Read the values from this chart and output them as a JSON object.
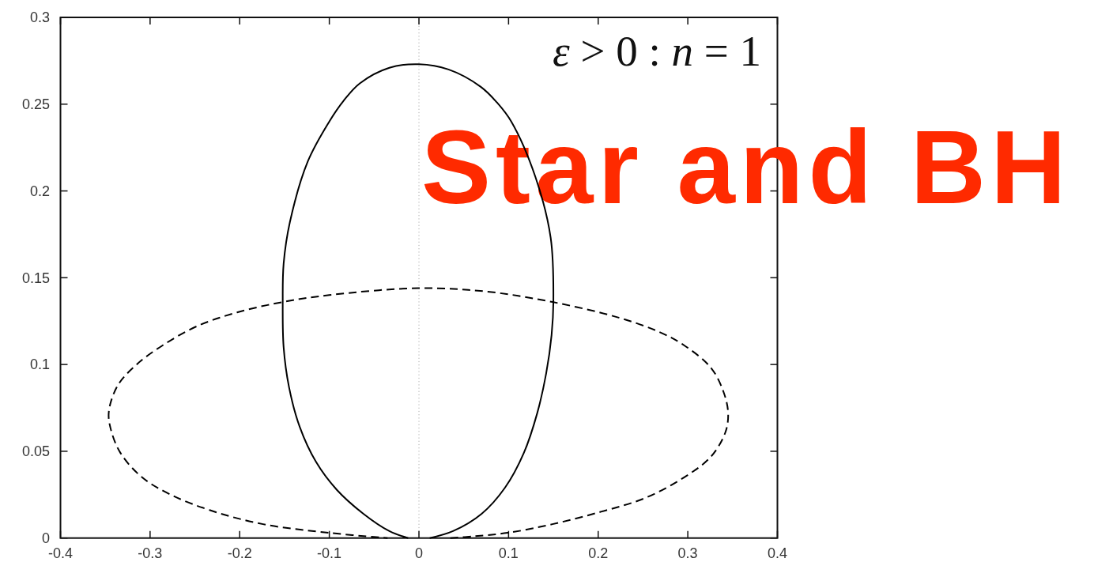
{
  "chart_data": {
    "type": "line",
    "xlim": [
      -0.4,
      0.4
    ],
    "ylim": [
      0,
      0.3
    ],
    "xticks": [
      -0.4,
      -0.3,
      -0.2,
      -0.1,
      0,
      0.1,
      0.2,
      0.3,
      0.4
    ],
    "yticks": [
      0,
      0.05,
      0.1,
      0.15,
      0.2,
      0.25,
      0.3
    ],
    "series": [
      {
        "color": "#000000",
        "line_style": "solid",
        "x": [
          0.012,
          0.038,
          0.07,
          0.096,
          0.117,
          0.132,
          0.142,
          0.148,
          0.15,
          0.147,
          0.13,
          0.103,
          0.087,
          0.069,
          0.033,
          0,
          -0.033,
          -0.066,
          -0.084,
          -0.1,
          -0.124,
          -0.144,
          -0.151,
          -0.152,
          -0.151,
          -0.145,
          -0.133,
          -0.115,
          -0.092,
          -0.062,
          -0.033,
          -0.012
        ],
        "values": [
          0,
          0.004,
          0.014,
          0.029,
          0.049,
          0.072,
          0.095,
          0.117,
          0.136,
          0.173,
          0.208,
          0.24,
          0.251,
          0.26,
          0.27,
          0.273,
          0.271,
          0.262,
          0.252,
          0.24,
          0.217,
          0.182,
          0.158,
          0.136,
          0.11,
          0.087,
          0.064,
          0.044,
          0.028,
          0.014,
          0.004,
          0
        ]
      },
      {
        "color": "#000000",
        "line_style": "dashed",
        "x": [
          0.035,
          0.061,
          0.099,
          0.149,
          0.202,
          0.252,
          0.296,
          0.326,
          0.342,
          0.345,
          0.34,
          0.326,
          0.296,
          0.267,
          0.223,
          0.149,
          0.076,
          0,
          -0.1,
          -0.152,
          -0.203,
          -0.248,
          -0.286,
          -0.315,
          -0.336,
          -0.346,
          -0.344,
          -0.333,
          -0.309,
          -0.277,
          -0.233,
          -0.174,
          -0.1,
          -0.035
        ],
        "values": [
          0,
          0.001,
          0.003,
          0.008,
          0.015,
          0.023,
          0.035,
          0.047,
          0.061,
          0.072,
          0.084,
          0.098,
          0.111,
          0.119,
          0.127,
          0.136,
          0.142,
          0.144,
          0.14,
          0.136,
          0.13,
          0.122,
          0.111,
          0.1,
          0.088,
          0.073,
          0.063,
          0.049,
          0.035,
          0.025,
          0.016,
          0.008,
          0.003,
          0
        ]
      }
    ],
    "ref_lines": [
      {
        "axis": "x",
        "value": 0,
        "color": "#aaaaaa",
        "line_style": "dotted"
      }
    ],
    "annotations": [
      "ε > 0 : n = 1",
      "Star and BH"
    ]
  }
}
